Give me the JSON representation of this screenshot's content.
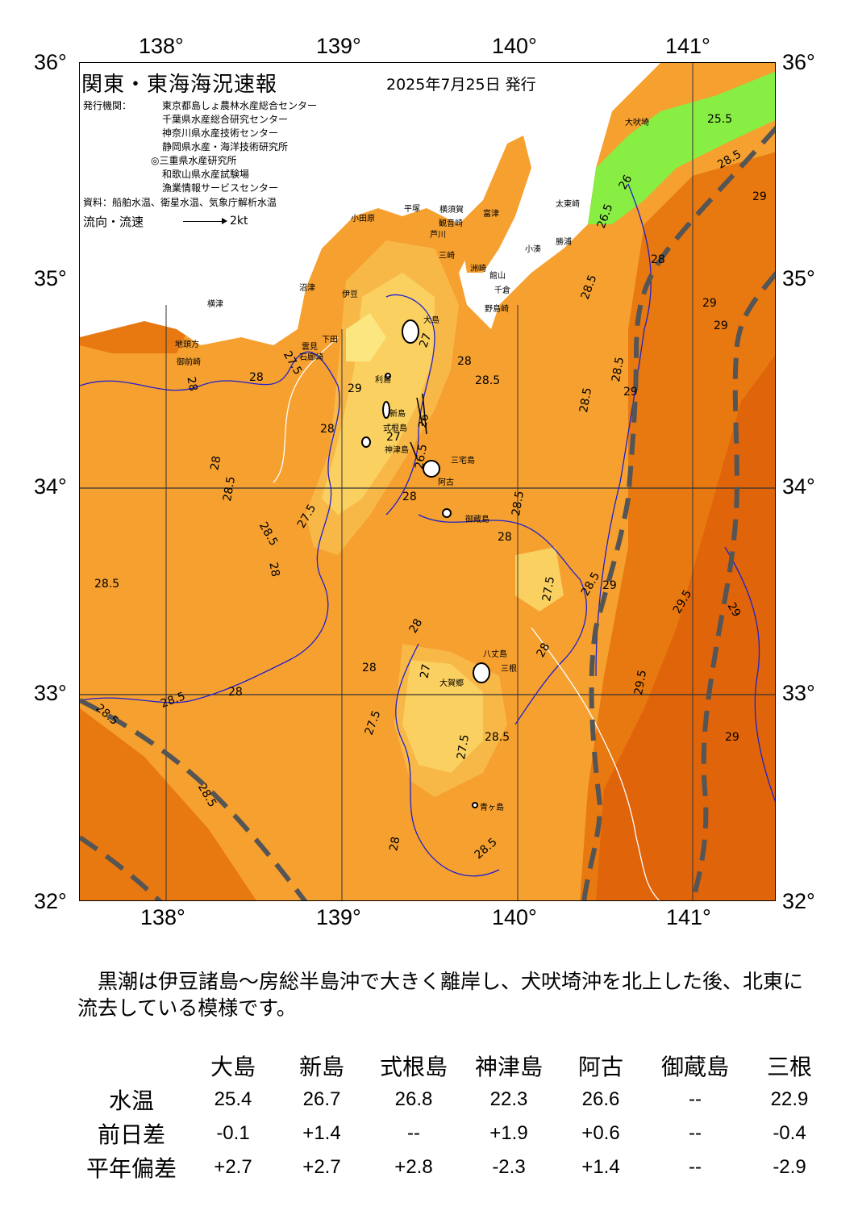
{
  "axes": {
    "top_lon": [
      "138°",
      "139°",
      "140°",
      "141°"
    ],
    "bottom_lon": [
      "138°",
      "139°",
      "140°",
      "141°"
    ],
    "left_lat": [
      "36°",
      "35°",
      "34°",
      "33°",
      "32°"
    ],
    "right_lat": [
      "36°",
      "35°",
      "34°",
      "33°",
      "32°"
    ]
  },
  "header": {
    "title": "関東・東海海況速報",
    "date": "2025年7月25日 発行",
    "issuer_label": "発行機関：",
    "issuers": [
      "東京都島しょ農林水産総合センター",
      "千葉県水産総合研究センター",
      "神奈川県水産技術センター",
      "静岡県水産・海洋技術研究所",
      "◎三重県水産研究所",
      "和歌山県水産試験場",
      "漁業情報サービスセンター"
    ],
    "source": "資料：船舶水温、衛星水温、気象庁解析水温",
    "legend_label": "流向・流速",
    "legend_speed": "2kt"
  },
  "colors": {
    "sea_main": "#f6a030",
    "sea_warm": "#e87810",
    "sea_hot": "#e0640a",
    "sea_cool": "#f8b848",
    "sea_cooler": "#fad060",
    "sea_coolest": "#fce680",
    "coastal_green": "#88ee44",
    "kuroshio_axis": "#555555",
    "contour_line": "#2020cc"
  },
  "places": [
    "大吠埼",
    "太東崎",
    "勝浦",
    "小湊",
    "館山",
    "千倉",
    "野島崎",
    "洲崎",
    "富津",
    "観音崎",
    "横須賀",
    "平塚",
    "小田原",
    "芦川",
    "三崎",
    "伊豆",
    "沼津",
    "下田",
    "石廊崎",
    "雲見",
    "地頭方",
    "御前崎",
    "横津",
    "利島",
    "新島",
    "式根島",
    "神津島",
    "三宅島",
    "阿古",
    "御蔵島",
    "八丈島",
    "三根",
    "大賀郷",
    "青ヶ島",
    "大島"
  ],
  "sst_labels": [
    "25.5",
    "26",
    "26.5",
    "28.5",
    "29",
    "28",
    "29",
    "28.5",
    "29",
    "29",
    "29",
    "27",
    "27.5",
    "28",
    "28.5",
    "28",
    "28.5",
    "28.5",
    "28",
    "28",
    "28.5",
    "27.5",
    "28.5",
    "28",
    "28.5",
    "27",
    "26.5",
    "26",
    "28",
    "28",
    "27.5",
    "28.5",
    "28",
    "28",
    "28",
    "27",
    "28",
    "28.5",
    "28",
    "27.5",
    "27.5",
    "28.5",
    "28.5",
    "29.5",
    "29",
    "29.5",
    "29",
    "29",
    "28.5",
    "28.5",
    "28",
    "28.5"
  ],
  "summary": "黒潮は伊豆諸島～房総半島沖で大きく離岸し、犬吠埼沖を北上した後、北東に流去している模様です。",
  "table": {
    "columns": [
      "大島",
      "新島",
      "式根島",
      "神津島",
      "阿古",
      "御蔵島",
      "三根"
    ],
    "rows": [
      {
        "label": "水温",
        "values": [
          "25.4",
          "26.7",
          "26.8",
          "22.3",
          "26.6",
          "--",
          "22.9"
        ]
      },
      {
        "label": "前日差",
        "values": [
          "-0.1",
          "+1.4",
          "--",
          "+1.9",
          "+0.6",
          "--",
          "-0.4"
        ]
      },
      {
        "label": "平年偏差",
        "values": [
          "+2.7",
          "+2.7",
          "+2.8",
          "-2.3",
          "+1.4",
          "--",
          "-2.9"
        ]
      }
    ]
  }
}
